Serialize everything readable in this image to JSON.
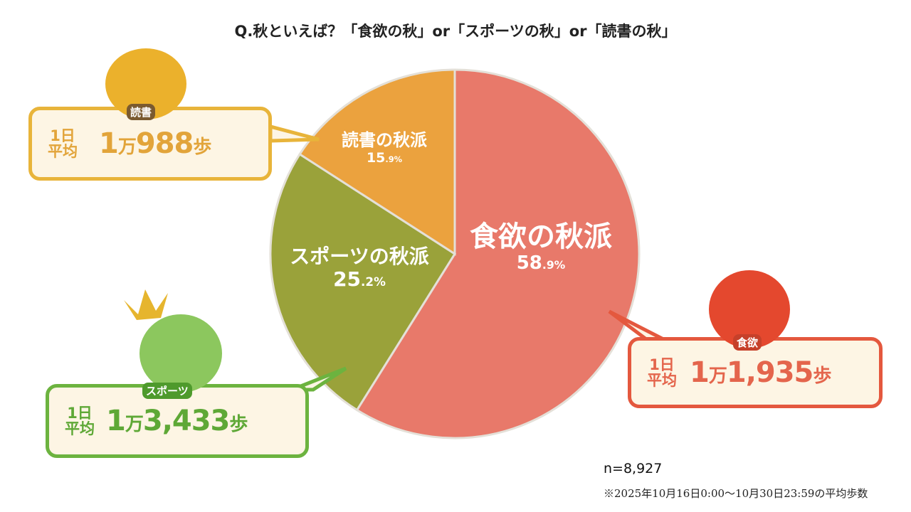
{
  "chart_data": {
    "type": "pie",
    "title": "Q.秋といえば？「食欲の秋」or「スポーツの秋」or「読書の秋」",
    "slices": [
      {
        "label": "食欲の秋派",
        "value": 58.9,
        "pct_main": "58",
        "pct_dec": ".9%",
        "color": "#E8796A"
      },
      {
        "label": "スポーツの秋派",
        "value": 25.2,
        "pct_main": "25",
        "pct_dec": ".2%",
        "color": "#9AA23A"
      },
      {
        "label": "読書の秋派",
        "value": 15.9,
        "pct_main": "15",
        "pct_dec": ".9%",
        "color": "#EBA23E"
      }
    ],
    "start": "top",
    "direction": "clockwise"
  },
  "callouts": {
    "reading": {
      "badge": "読書",
      "label1": "1日",
      "label2": "平均",
      "num1": "1",
      "unit1": "万",
      "num2": "988",
      "unit2": "歩",
      "color": "#E8B43A",
      "text_color": "#E2A43A"
    },
    "sports": {
      "badge": "スポーツ",
      "label1": "1日",
      "label2": "平均",
      "num1": "1",
      "unit1": "万",
      "num2": "3,433",
      "unit2": "歩",
      "color": "#6CB33F",
      "text_color": "#5EA836"
    },
    "food": {
      "badge": "食欲",
      "label1": "1日",
      "label2": "平均",
      "num1": "1",
      "unit1": "万",
      "num2": "1,935",
      "unit2": "歩",
      "color": "#E4583E",
      "text_color": "#E4654C"
    }
  },
  "footer": {
    "n": "n=8,927",
    "note": "※2025年10月16日0:00～10月30日23:59の平均歩数"
  }
}
